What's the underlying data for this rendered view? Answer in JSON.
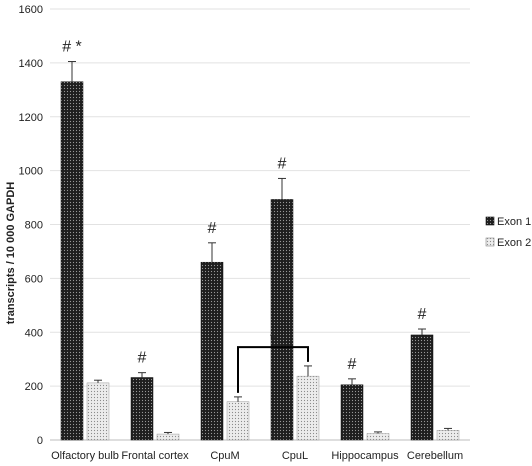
{
  "chart_data": {
    "type": "bar",
    "title": "",
    "xlabel": "",
    "ylabel": "transcripts / 10 000 GAPDH",
    "ylim": [
      0,
      1600
    ],
    "yticks": [
      0,
      200,
      400,
      600,
      800,
      1000,
      1200,
      1400,
      1600
    ],
    "grid": true,
    "legend_position": "right",
    "categories": [
      "Olfactory bulb",
      "Frontal cortex",
      "CpuM",
      "CpuL",
      "Hippocampus",
      "Cerebellum"
    ],
    "series": [
      {
        "name": "Exon 1",
        "color": "#1e1e1e",
        "pattern": "dots-light-on-dark",
        "values": [
          1330,
          232,
          660,
          893,
          205,
          390
        ],
        "errors": [
          75,
          18,
          72,
          78,
          22,
          22
        ],
        "labels": [
          "# *",
          "#",
          "#",
          "#",
          "#",
          "#"
        ]
      },
      {
        "name": "Exon 2",
        "color": "#d8d8d8",
        "pattern": "dots-dark-on-light",
        "values": [
          212,
          22,
          142,
          237,
          24,
          36
        ],
        "errors": [
          10,
          6,
          18,
          38,
          6,
          7
        ]
      }
    ],
    "annotations": [
      {
        "type": "bracket",
        "text": "*",
        "from": "CpuM",
        "to": "CpuL",
        "y": 345
      }
    ]
  }
}
